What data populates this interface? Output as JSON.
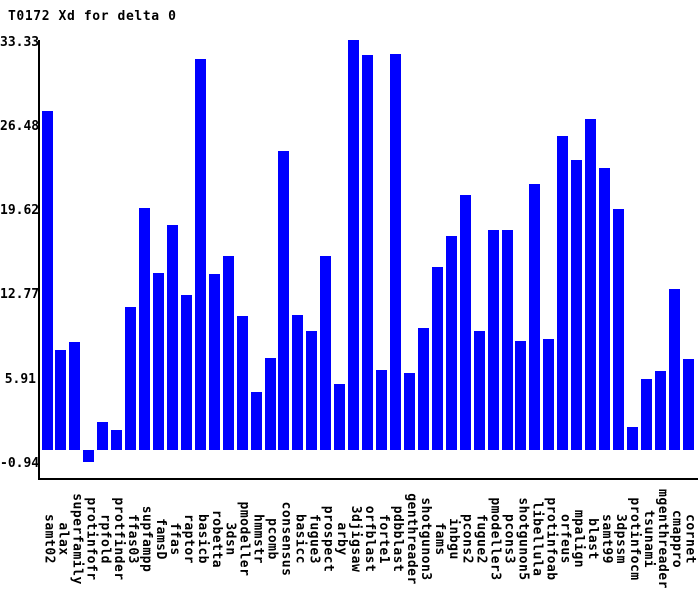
{
  "chart_data": {
    "type": "bar",
    "title": "T0172 Xd for delta 0",
    "xlabel": "",
    "ylabel": "",
    "grid": false,
    "legend": "none",
    "bar_color": "#0000ff",
    "axis_color": "#000000",
    "background_color": "#ffffff",
    "ylim": [
      -2.1,
      33.9
    ],
    "yticks": [
      33.33,
      26.48,
      19.62,
      12.77,
      5.91,
      -0.94
    ],
    "ytick_labels": [
      "33.33",
      "26.48",
      "19.62",
      "12.77",
      "5.91",
      "-0.94"
    ],
    "categories": [
      "samt02",
      "alax",
      "superfamily",
      "protinfofr",
      "rpfold",
      "protfinder",
      "ffas03",
      "supfampp",
      "famsD",
      "ffas",
      "raptor",
      "basicb",
      "robetta",
      "3dsn",
      "pmodeller",
      "hmmstr",
      "pcomb",
      "consensus",
      "basicc",
      "fugue3",
      "prospect",
      "arby",
      "3djigsaw",
      "orfblast",
      "forte1",
      "pdbblast",
      "genthreader",
      "shotgunon3",
      "fams",
      "inbgu",
      "pcons2",
      "fugue2",
      "pmodeller3",
      "pcons3",
      "shotgunon5",
      "libellula",
      "protinfoab",
      "orfeus",
      "mpalign",
      "blast",
      "samt99",
      "3dpssm",
      "protinfocm",
      "tsunami",
      "mgenthreader",
      "cmappro",
      "cornet"
    ],
    "values": [
      27.6,
      8.1,
      8.8,
      -0.94,
      2.3,
      1.6,
      11.6,
      19.7,
      14.4,
      18.3,
      12.6,
      31.8,
      14.3,
      15.8,
      10.9,
      4.7,
      7.5,
      24.3,
      11.0,
      9.7,
      15.8,
      5.4,
      33.33,
      32.1,
      6.5,
      32.2,
      6.3,
      9.9,
      14.9,
      17.4,
      20.7,
      9.7,
      17.9,
      17.9,
      8.9,
      21.6,
      9.0,
      25.5,
      23.6,
      26.9,
      22.9,
      19.6,
      1.9,
      5.8,
      6.4,
      13.1,
      7.4
    ]
  }
}
